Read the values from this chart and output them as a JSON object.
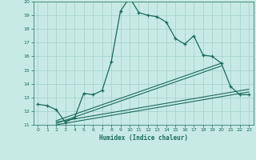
{
  "title": "",
  "xlabel": "Humidex (Indice chaleur)",
  "xlim": [
    -0.5,
    23.5
  ],
  "ylim": [
    11,
    20
  ],
  "yticks": [
    11,
    12,
    13,
    14,
    15,
    16,
    17,
    18,
    19,
    20
  ],
  "xticks": [
    0,
    1,
    2,
    3,
    4,
    5,
    6,
    7,
    8,
    9,
    10,
    11,
    12,
    13,
    14,
    15,
    16,
    17,
    18,
    19,
    20,
    21,
    22,
    23
  ],
  "bg_color": "#c8eae4",
  "grid_color": "#a0cfc8",
  "line_color": "#1a6b5a",
  "main_x": [
    0,
    1,
    2,
    3,
    4,
    5,
    6,
    7,
    8,
    9,
    10,
    11,
    12,
    13,
    14,
    15,
    16,
    17,
    18,
    19,
    20,
    21,
    22,
    23
  ],
  "main_y": [
    12.5,
    12.4,
    12.1,
    11.2,
    11.5,
    13.3,
    13.2,
    13.5,
    15.6,
    19.3,
    20.3,
    19.2,
    19.0,
    18.9,
    18.5,
    17.3,
    16.9,
    17.5,
    16.1,
    16.0,
    15.5,
    13.8,
    13.2,
    13.2
  ],
  "ref_line1_x": [
    2,
    20
  ],
  "ref_line1_y": [
    11.1,
    15.3
  ],
  "ref_line2_x": [
    2,
    20
  ],
  "ref_line2_y": [
    11.3,
    15.5
  ],
  "ref_line3_x": [
    2,
    23
  ],
  "ref_line3_y": [
    11.0,
    13.4
  ],
  "ref_line4_x": [
    2,
    23
  ],
  "ref_line4_y": [
    11.2,
    13.6
  ]
}
